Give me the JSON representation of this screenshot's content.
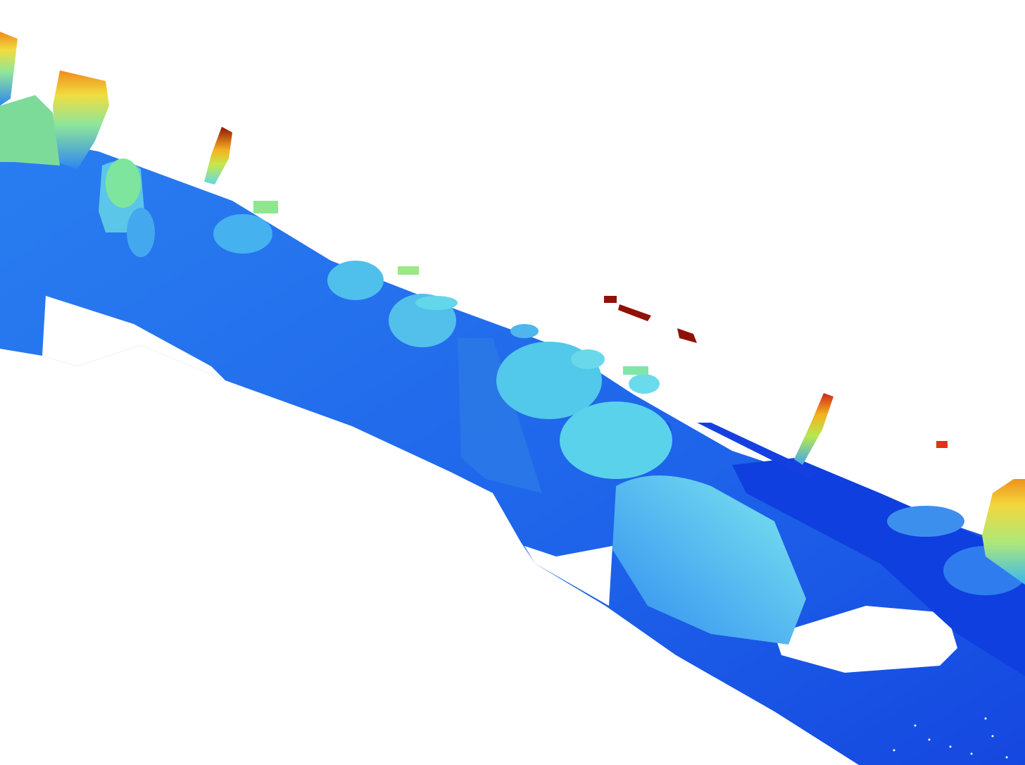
{
  "view": {
    "background": "#ffffff",
    "colormap": "jet",
    "colors": {
      "ground_dark": "#1a5ce8",
      "ground_mid": "#2b78ee",
      "ground_far": "#1547e0",
      "cyan": "#63dcea",
      "light_cyan": "#86ecf0",
      "green": "#9ee98a",
      "yellow": "#f2e03e",
      "orange": "#f49a1c",
      "red": "#e2321a",
      "dark_red": "#8f1208"
    }
  }
}
